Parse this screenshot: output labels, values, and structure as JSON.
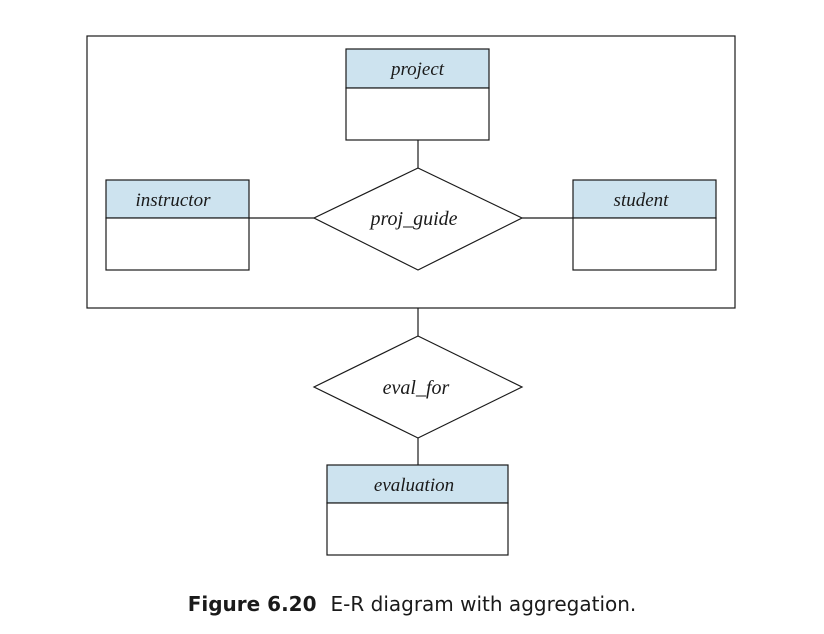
{
  "diagram": {
    "header_fill": "#cde3ef",
    "line_color": "#1a1a1a",
    "entities": {
      "project": "project",
      "instructor": "instructor",
      "student": "student",
      "evaluation": "evaluation"
    },
    "relationships": {
      "proj_guide": "proj_guide",
      "eval_for": "eval_for"
    }
  },
  "caption": {
    "figure_number": "Figure 6.20",
    "text": "E-R diagram with aggregation."
  }
}
